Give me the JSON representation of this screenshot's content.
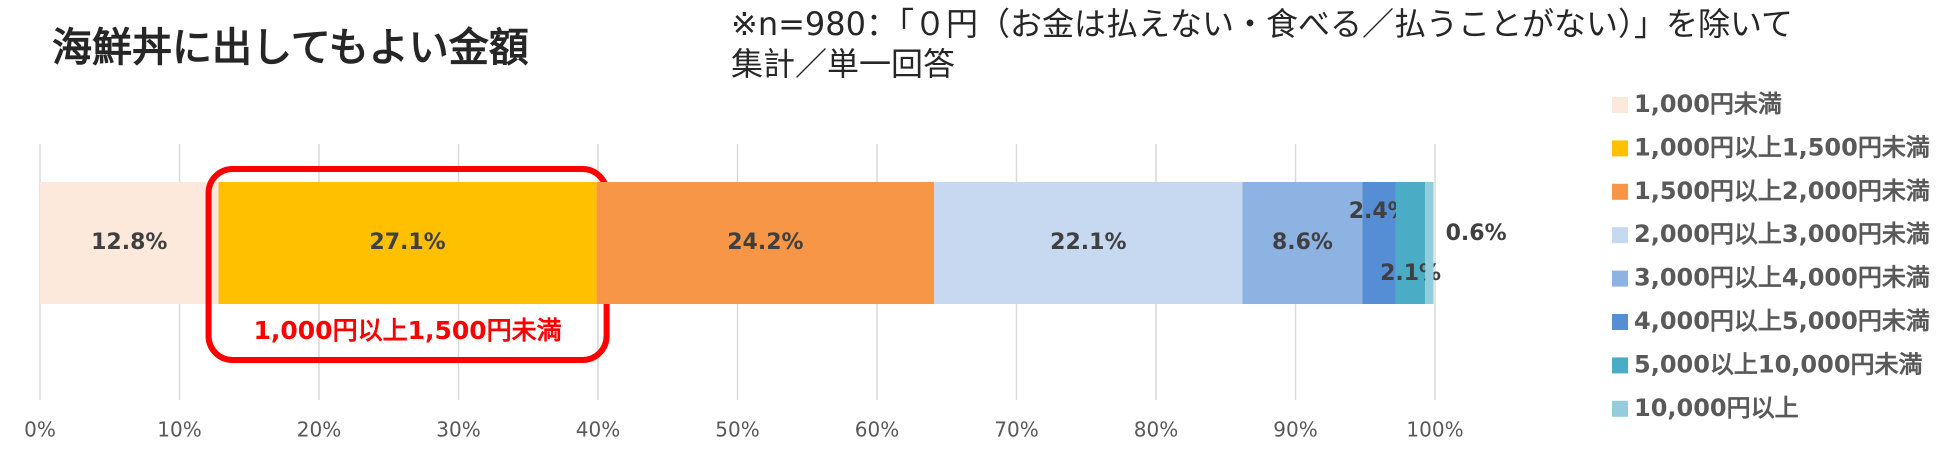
{
  "chart_data": {
    "type": "stacked_bar_horizontal",
    "title": "海鮮丼に出してもよい金額",
    "subtitle": [
      "※n=980：「０円（お金は払えない・食べる／払うことがない）」を除いて",
      "集計／単一回答"
    ],
    "annotation": "1,000円以上1,500円未満",
    "categories": [
      null
    ],
    "series": [
      {
        "name": "1,000円未満",
        "color": "#fce9dc",
        "values": [
          12.8
        ],
        "value_labels": [
          "12.8%"
        ]
      },
      {
        "name": "1,000円以上1,500円未満",
        "color": "#ffc000",
        "values": [
          27.1
        ],
        "value_labels": [
          "27.1%"
        ]
      },
      {
        "name": "1,500円以上2,000円未満",
        "color": "#f79646",
        "values": [
          24.2
        ],
        "value_labels": [
          "24.2%"
        ]
      },
      {
        "name": "2,000円以上3,000円未満",
        "color": "#c6d9f1",
        "values": [
          22.1
        ],
        "value_labels": [
          "22.1%"
        ]
      },
      {
        "name": "3,000円以上4,000円未満",
        "color": "#8db3e2",
        "values": [
          8.6
        ],
        "value_labels": [
          "8.6%"
        ]
      },
      {
        "name": "4,000円以上5,000円未満",
        "color": "#558ed5",
        "values": [
          2.4
        ],
        "value_labels": [
          "2.4%"
        ]
      },
      {
        "name": "5,000以上10,000円未満",
        "color": "#4bacc6",
        "values": [
          2.1
        ],
        "value_labels": [
          "2.1%"
        ]
      },
      {
        "name": "10,000円以上",
        "color": "#93cddd",
        "values": [
          0.6
        ],
        "value_labels": [
          "0.6%"
        ]
      }
    ],
    "xlim": [
      0,
      100
    ],
    "xticks": [
      {
        "value": 0,
        "label": "0%"
      },
      {
        "value": 10,
        "label": "10%"
      },
      {
        "value": 20,
        "label": "20%"
      },
      {
        "value": 30,
        "label": "30%"
      },
      {
        "value": 40,
        "label": "40%"
      },
      {
        "value": 50,
        "label": "50%"
      },
      {
        "value": 60,
        "label": "60%"
      },
      {
        "value": 70,
        "label": "70%"
      },
      {
        "value": 80,
        "label": "80%"
      },
      {
        "value": 90,
        "label": "90%"
      },
      {
        "value": 100,
        "label": "100%"
      }
    ],
    "grid": true,
    "legend": "right"
  }
}
